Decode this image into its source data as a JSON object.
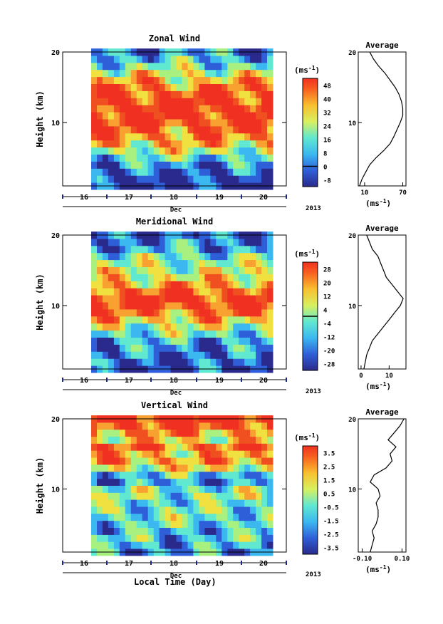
{
  "chart_data": [
    {
      "type": "heatmap",
      "title": "Zonal Wind",
      "ylabel": "Height (km)",
      "ylim": [
        1,
        20
      ],
      "yticks": [
        10,
        20
      ],
      "xticks": [
        "16",
        "17",
        "18",
        "19",
        "20"
      ],
      "xlabel": "Dec",
      "year": "2013",
      "colorbar": {
        "unit": "(ms-1)",
        "ticks": [
          "48",
          "40",
          "32",
          "24",
          "16",
          "8",
          "0",
          "-8"
        ],
        "min": -12,
        "max": 52,
        "zero_line": 0
      },
      "profile": {
        "title": "Average",
        "xticks": [
          "10",
          "70"
        ],
        "xlim": [
          0,
          75
        ],
        "xunit": "(ms-1)",
        "heights": [
          1,
          2,
          3,
          4,
          5,
          6,
          7,
          8,
          9,
          10,
          11,
          12,
          13,
          14,
          15,
          16,
          17,
          18,
          19,
          20
        ],
        "values": [
          2,
          6,
          12,
          18,
          28,
          40,
          50,
          56,
          61,
          66,
          70,
          70,
          68,
          64,
          58,
          50,
          42,
          32,
          24,
          18
        ]
      }
    },
    {
      "type": "heatmap",
      "title": "Meridional Wind",
      "ylabel": "Height (km)",
      "ylim": [
        1,
        20
      ],
      "yticks": [
        10,
        20
      ],
      "xticks": [
        "16",
        "17",
        "18",
        "19",
        "20"
      ],
      "xlabel": "Dec",
      "year": "2013",
      "colorbar": {
        "unit": "(ms-1)",
        "ticks": [
          "28",
          "20",
          "12",
          "4",
          "-4",
          "-12",
          "-20",
          "-28"
        ],
        "min": -32,
        "max": 32,
        "zero_line": 0
      },
      "profile": {
        "title": "Average",
        "xticks": [
          "0",
          "10"
        ],
        "xlim": [
          -1,
          16
        ],
        "xunit": "(ms-1)",
        "heights": [
          1,
          2,
          3,
          4,
          5,
          6,
          7,
          8,
          9,
          10,
          11,
          12,
          13,
          14,
          15,
          16,
          17,
          18,
          19,
          20
        ],
        "values": [
          1,
          1.5,
          2,
          3,
          4,
          6,
          8,
          10,
          12,
          14,
          15,
          13,
          11,
          9,
          8,
          7,
          6,
          4,
          3,
          2
        ]
      }
    },
    {
      "type": "heatmap",
      "title": "Vertical Wind",
      "ylabel": "Height (km)",
      "ylim": [
        1,
        20
      ],
      "yticks": [
        10,
        20
      ],
      "xticks": [
        "16",
        "17",
        "18",
        "19",
        "20"
      ],
      "xlabel": "Dec",
      "year": "2013",
      "colorbar": {
        "unit": "(ms-1)",
        "ticks": [
          "3.5",
          "2.5",
          "1.5",
          "0.5",
          "-0.5",
          "-1.5",
          "-2.5",
          "-3.5"
        ],
        "min": -4,
        "max": 4
      },
      "profile": {
        "title": "Average",
        "xticks": [
          "-0.10",
          "0.10"
        ],
        "xlim": [
          -0.12,
          0.12
        ],
        "xunit": "(ms-1)",
        "heights": [
          1,
          2,
          3,
          4,
          5,
          6,
          7,
          8,
          9,
          10,
          11,
          12,
          13,
          14,
          15,
          16,
          17,
          18,
          19,
          20
        ],
        "values": [
          -0.06,
          -0.05,
          -0.04,
          -0.05,
          -0.03,
          -0.02,
          -0.02,
          -0.03,
          -0.01,
          -0.02,
          -0.06,
          -0.04,
          0.02,
          0.05,
          0.04,
          0.07,
          0.03,
          0.06,
          0.09,
          0.11
        ]
      }
    }
  ],
  "footer": {
    "xlabel": "Local Time (Day)"
  }
}
